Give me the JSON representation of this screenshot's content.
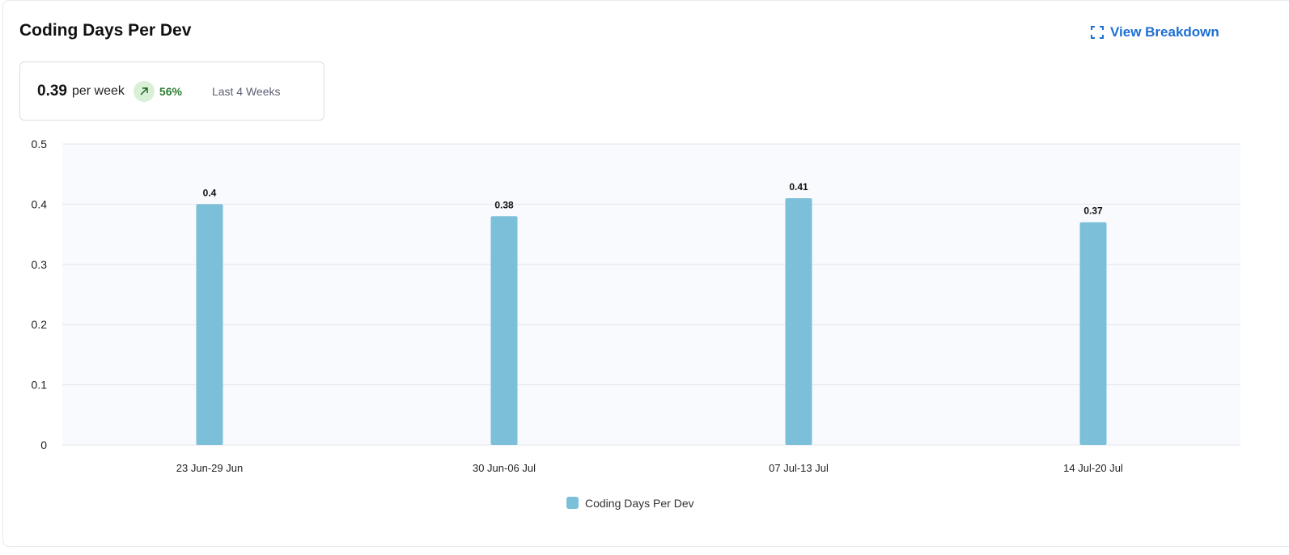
{
  "header": {
    "title": "Coding Days Per Dev",
    "view_breakdown": "View Breakdown"
  },
  "stat": {
    "value": "0.39",
    "unit": "per week",
    "change": "56%",
    "trend": "up",
    "period": "Last 4 Weeks"
  },
  "colors": {
    "bar": "#7bbfd9",
    "accent": "#1d6fd1",
    "positive": "#2e7d32"
  },
  "chart_data": {
    "type": "bar",
    "categories": [
      "23 Jun-29 Jun",
      "30 Jun-06 Jul",
      "07 Jul-13 Jul",
      "14 Jul-20 Jul"
    ],
    "series": [
      {
        "name": "Coding Days Per Dev",
        "values": [
          0.4,
          0.38,
          0.41,
          0.37
        ]
      }
    ],
    "data_labels": [
      "0.4",
      "0.38",
      "0.41",
      "0.37"
    ],
    "yticks": [
      "0",
      "0.1",
      "0.2",
      "0.3",
      "0.4",
      "0.5"
    ],
    "ylim": [
      0,
      0.5
    ],
    "grid": true,
    "legend": "bottom-center"
  }
}
